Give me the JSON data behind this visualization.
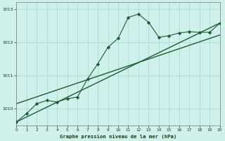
{
  "title": "Graphe pression niveau de la mer (hPa)",
  "bg_color": "#cff0eb",
  "grid_color": "#a8ddd7",
  "line_color": "#1e5c30",
  "xlim": [
    0,
    20
  ],
  "ylim": [
    1009.5,
    1013.2
  ],
  "yticks": [
    1010,
    1011,
    1012,
    1013
  ],
  "xticks": [
    0,
    1,
    2,
    3,
    4,
    5,
    6,
    7,
    8,
    9,
    10,
    11,
    12,
    13,
    14,
    15,
    16,
    17,
    18,
    19,
    20
  ],
  "series1_x": [
    0,
    1,
    2,
    3,
    4,
    5,
    6,
    7,
    8,
    9,
    10,
    11,
    12,
    13,
    14,
    15,
    16,
    17,
    18,
    19,
    20
  ],
  "series1_y": [
    1009.6,
    1009.85,
    1010.15,
    1010.25,
    1010.2,
    1010.3,
    1010.35,
    1010.9,
    1011.35,
    1011.85,
    1012.12,
    1012.75,
    1012.85,
    1012.6,
    1012.15,
    1012.2,
    1012.28,
    1012.32,
    1012.3,
    1012.3,
    1012.58
  ],
  "line2_x": [
    0,
    20
  ],
  "line2_y": [
    1010.15,
    1012.22
  ],
  "line3_x": [
    0,
    20
  ],
  "line3_y": [
    1009.6,
    1012.58
  ]
}
